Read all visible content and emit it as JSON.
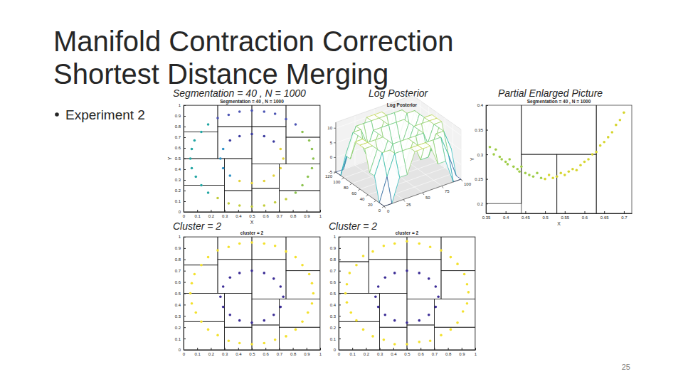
{
  "slide": {
    "title": [
      "Manifold Contraction Correction",
      "Shortest Distance Merging"
    ],
    "bullet": "Experiment 2",
    "captions": [
      "Segmentation = 40 , N = 1000",
      "Log Posterior",
      "Partial Enlarged Picture",
      "Cluster = 2",
      "Cluster = 2"
    ],
    "page": 25
  },
  "chart_data": [
    {
      "type": "scatter",
      "title": "Segmentation = 40 , N = 1000",
      "xlabel": "X",
      "ylabel": "Y",
      "xlim": [
        0,
        1
      ],
      "ylim": [
        0,
        1
      ],
      "xticks": [
        0,
        0.1,
        0.2,
        0.3,
        0.4,
        0.5,
        0.6,
        0.7,
        0.8,
        0.9,
        1
      ],
      "yticks": [
        0,
        0.1,
        0.2,
        0.3,
        0.4,
        0.5,
        0.6,
        0.7,
        0.8,
        0.9,
        1
      ],
      "boxes": [
        [
          0,
          0.25,
          0.5,
          0.75
        ],
        [
          0,
          0.25,
          0.75,
          1
        ],
        [
          0.25,
          0.5,
          0.5,
          0.8
        ],
        [
          0.25,
          0.5,
          0.8,
          1
        ],
        [
          0,
          0.3,
          0,
          0.25
        ],
        [
          0,
          0.3,
          0.25,
          0.5
        ],
        [
          0.3,
          0.5,
          0,
          0.2
        ],
        [
          0.3,
          0.5,
          0.2,
          0.5
        ],
        [
          0.5,
          0.75,
          0.45,
          0.8
        ],
        [
          0.5,
          0.75,
          0.8,
          1
        ],
        [
          0.75,
          1,
          0.45,
          0.7
        ],
        [
          0.75,
          1,
          0.7,
          1
        ],
        [
          0.5,
          0.7,
          0,
          0.22
        ],
        [
          0.5,
          0.7,
          0.22,
          0.45
        ],
        [
          0.7,
          1,
          0,
          0.2
        ],
        [
          0.7,
          1,
          0.2,
          0.45
        ]
      ],
      "series": [
        {
          "color": "#4b54b3",
          "x": [
            0.82,
            0.75,
            0.67,
            0.59,
            0.5,
            0.41,
            0.33,
            0.25
          ],
          "values": [
            0.82,
            0.87,
            0.92,
            0.94,
            0.95,
            0.94,
            0.91,
            0.88
          ]
        },
        {
          "color": "#22a6a3",
          "x": [
            0.18,
            0.13,
            0.08,
            0.06,
            0.05,
            0.06,
            0.09,
            0.13,
            0.18
          ],
          "values": [
            0.82,
            0.75,
            0.67,
            0.59,
            0.5,
            0.41,
            0.33,
            0.25,
            0.18
          ]
        },
        {
          "color": "#c2cd3a",
          "x": [
            0.25,
            0.33,
            0.41,
            0.5,
            0.59,
            0.67,
            0.75
          ],
          "values": [
            0.13,
            0.08,
            0.06,
            0.05,
            0.06,
            0.09,
            0.12
          ]
        },
        {
          "color": "#8cc34f",
          "x": [
            0.82,
            0.87,
            0.91,
            0.94,
            0.95,
            0.94,
            0.92,
            0.87
          ],
          "values": [
            0.18,
            0.25,
            0.33,
            0.41,
            0.5,
            0.59,
            0.67,
            0.75
          ]
        },
        {
          "color": "#3a3a9e",
          "x": [
            0.66,
            0.59,
            0.5,
            0.41,
            0.34
          ],
          "values": [
            0.66,
            0.71,
            0.73,
            0.71,
            0.67
          ]
        },
        {
          "color": "#2a8fc5",
          "x": [
            0.29,
            0.27,
            0.29,
            0.34
          ],
          "values": [
            0.59,
            0.5,
            0.41,
            0.34
          ]
        },
        {
          "color": "#e3d33a",
          "x": [
            0.41,
            0.5,
            0.59,
            0.66,
            0.71,
            0.73,
            0.71
          ],
          "values": [
            0.29,
            0.27,
            0.29,
            0.34,
            0.41,
            0.5,
            0.59
          ]
        }
      ]
    },
    {
      "type": "surface",
      "title": "Log Posterior",
      "x": [
        0,
        12,
        24,
        36,
        48,
        60,
        72,
        84,
        96,
        108,
        120
      ],
      "y": [
        0,
        10,
        20,
        30,
        40,
        50,
        60,
        70,
        80,
        90,
        100
      ],
      "z": [
        [
          -5,
          -5,
          3,
          3,
          10,
          10,
          10,
          3,
          3,
          -5,
          -5
        ],
        [
          -5,
          3,
          10,
          10,
          10,
          10,
          10,
          10,
          10,
          3,
          -5
        ],
        [
          3,
          10,
          10,
          3,
          3,
          10,
          3,
          3,
          10,
          10,
          3
        ],
        [
          3,
          10,
          3,
          10,
          10,
          10,
          10,
          10,
          3,
          10,
          3
        ],
        [
          10,
          10,
          3,
          10,
          3,
          3,
          3,
          10,
          3,
          10,
          10
        ],
        [
          10,
          10,
          10,
          10,
          3,
          -5,
          3,
          10,
          10,
          10,
          10
        ],
        [
          10,
          10,
          3,
          10,
          3,
          3,
          3,
          10,
          3,
          10,
          10
        ],
        [
          3,
          10,
          3,
          10,
          10,
          10,
          10,
          10,
          3,
          10,
          3
        ],
        [
          3,
          10,
          10,
          3,
          3,
          10,
          3,
          3,
          10,
          10,
          3
        ],
        [
          -5,
          3,
          10,
          10,
          10,
          10,
          10,
          10,
          10,
          3,
          -5
        ],
        [
          -5,
          -5,
          3,
          3,
          10,
          10,
          10,
          3,
          3,
          -5,
          -5
        ]
      ],
      "xlim": [
        0,
        120
      ],
      "ylim": [
        0,
        100
      ],
      "zlim": [
        -5,
        12
      ],
      "xticks": [
        0,
        20,
        40,
        60,
        80,
        100,
        120
      ],
      "yticks": [
        0,
        25,
        50,
        75,
        100
      ],
      "zticks": [
        -5,
        0,
        5,
        10
      ]
    },
    {
      "type": "scatter",
      "title": "Segmentation = 40 , N = 1000",
      "xlabel": "X",
      "ylabel": "Y",
      "xlim": [
        0.35,
        0.72
      ],
      "ylim": [
        0.18,
        0.4
      ],
      "xticks": [
        0.35,
        0.4,
        0.45,
        0.5,
        0.55,
        0.6,
        0.65,
        0.7
      ],
      "yticks": [
        0.2,
        0.25,
        0.3,
        0.35,
        0.4
      ],
      "boxes": [
        [
          0.25,
          0.44,
          0.2,
          0.5
        ],
        [
          0.44,
          0.53,
          0.1,
          0.3
        ],
        [
          0.53,
          0.63,
          0.1,
          0.3
        ],
        [
          0.44,
          0.63,
          0.3,
          0.5
        ],
        [
          0.63,
          0.8,
          0.1,
          0.45
        ]
      ],
      "series": [
        {
          "color": "#9fcd48",
          "x": [
            0.36,
            0.37,
            0.375,
            0.385,
            0.39,
            0.4,
            0.405,
            0.41,
            0.42,
            0.43,
            0.435,
            0.44,
            0.45,
            0.46,
            0.47,
            0.48,
            0.49
          ],
          "values": [
            0.315,
            0.3,
            0.31,
            0.295,
            0.29,
            0.285,
            0.28,
            0.29,
            0.275,
            0.27,
            0.265,
            0.275,
            0.262,
            0.258,
            0.255,
            0.262,
            0.252
          ]
        },
        {
          "color": "#d6d52e",
          "x": [
            0.5,
            0.51,
            0.52,
            0.53,
            0.54,
            0.55,
            0.56,
            0.57,
            0.58,
            0.59,
            0.6,
            0.61,
            0.62,
            0.63,
            0.64,
            0.65,
            0.66,
            0.67,
            0.68,
            0.69,
            0.7
          ],
          "values": [
            0.25,
            0.258,
            0.252,
            0.255,
            0.262,
            0.258,
            0.265,
            0.27,
            0.268,
            0.278,
            0.285,
            0.29,
            0.3,
            0.305,
            0.318,
            0.325,
            0.335,
            0.345,
            0.36,
            0.37,
            0.385
          ]
        }
      ]
    },
    {
      "type": "scatter",
      "title": "cluster = 2",
      "xlim": [
        0,
        1
      ],
      "ylim": [
        0,
        1
      ],
      "xticks": [
        0,
        0.1,
        0.2,
        0.3,
        0.4,
        0.5,
        0.6,
        0.7,
        0.8,
        0.9,
        1
      ],
      "yticks": [
        0,
        0.1,
        0.2,
        0.3,
        0.4,
        0.5,
        0.6,
        0.7,
        0.8,
        0.9,
        1
      ],
      "boxes": [
        [
          0,
          0.25,
          0.5,
          0.75
        ],
        [
          0,
          0.25,
          0.75,
          1
        ],
        [
          0.25,
          0.5,
          0.5,
          0.8
        ],
        [
          0.25,
          0.5,
          0.8,
          1
        ],
        [
          0,
          0.3,
          0,
          0.25
        ],
        [
          0,
          0.3,
          0.25,
          0.5
        ],
        [
          0.3,
          0.5,
          0,
          0.2
        ],
        [
          0.3,
          0.5,
          0.2,
          0.5
        ],
        [
          0.5,
          0.75,
          0.45,
          0.8
        ],
        [
          0.5,
          0.75,
          0.8,
          1
        ],
        [
          0.75,
          1,
          0.45,
          0.7
        ],
        [
          0.75,
          1,
          0.7,
          1
        ],
        [
          0.5,
          0.7,
          0,
          0.22
        ],
        [
          0.5,
          0.7,
          0.22,
          0.45
        ],
        [
          0.7,
          1,
          0,
          0.2
        ],
        [
          0.7,
          1,
          0.2,
          0.45
        ]
      ],
      "series": [
        {
          "color": "#f3e12c",
          "x": [
            0.95,
            0.94,
            0.92,
            0.87,
            0.82,
            0.75,
            0.67,
            0.59,
            0.5,
            0.41,
            0.33,
            0.25,
            0.18,
            0.13,
            0.08,
            0.06,
            0.05,
            0.06,
            0.09,
            0.13,
            0.18,
            0.25,
            0.33,
            0.41,
            0.5,
            0.59,
            0.67,
            0.75,
            0.82,
            0.87,
            0.91,
            0.94
          ],
          "values": [
            0.5,
            0.59,
            0.67,
            0.75,
            0.82,
            0.87,
            0.92,
            0.94,
            0.95,
            0.94,
            0.91,
            0.88,
            0.82,
            0.75,
            0.67,
            0.59,
            0.5,
            0.41,
            0.33,
            0.25,
            0.18,
            0.13,
            0.08,
            0.06,
            0.05,
            0.06,
            0.09,
            0.12,
            0.18,
            0.25,
            0.33,
            0.41
          ]
        },
        {
          "color": "#3c2d96",
          "x": [
            0.73,
            0.71,
            0.66,
            0.59,
            0.5,
            0.41,
            0.34,
            0.29,
            0.27,
            0.29,
            0.34,
            0.41,
            0.5,
            0.59,
            0.66,
            0.71
          ],
          "values": [
            0.47,
            0.56,
            0.63,
            0.68,
            0.7,
            0.68,
            0.64,
            0.56,
            0.47,
            0.38,
            0.31,
            0.26,
            0.24,
            0.26,
            0.31,
            0.38
          ]
        }
      ]
    },
    {
      "type": "scatter",
      "title": "cluster = 2",
      "xlim": [
        0,
        1
      ],
      "ylim": [
        0,
        1
      ],
      "xticks": [
        0,
        0.1,
        0.2,
        0.3,
        0.4,
        0.5,
        0.6,
        0.7,
        0.8,
        0.9,
        1
      ],
      "yticks": [
        0,
        0.1,
        0.2,
        0.3,
        0.4,
        0.5,
        0.6,
        0.7,
        0.8,
        0.9,
        1
      ],
      "boxes": [
        [
          0,
          0.22,
          0.5,
          0.78
        ],
        [
          0,
          0.22,
          0.78,
          1
        ],
        [
          0.22,
          0.5,
          0.5,
          0.8
        ],
        [
          0.22,
          0.5,
          0.8,
          1
        ],
        [
          0,
          0.3,
          0,
          0.25
        ],
        [
          0,
          0.3,
          0.25,
          0.5
        ],
        [
          0.3,
          0.5,
          0,
          0.2
        ],
        [
          0.3,
          0.5,
          0.2,
          0.5
        ],
        [
          0.5,
          0.75,
          0.45,
          0.8
        ],
        [
          0.5,
          0.75,
          0.8,
          1
        ],
        [
          0.75,
          1,
          0.45,
          0.7
        ],
        [
          0.75,
          1,
          0.7,
          1
        ],
        [
          0.5,
          0.7,
          0,
          0.22
        ],
        [
          0.5,
          0.7,
          0.22,
          0.45
        ],
        [
          0.7,
          1,
          0,
          0.2
        ],
        [
          0.7,
          1,
          0.2,
          0.45
        ]
      ],
      "series": [
        {
          "color": "#f3e12c",
          "x": [
            0.95,
            0.94,
            0.92,
            0.87,
            0.82,
            0.75,
            0.67,
            0.59,
            0.5,
            0.41,
            0.33,
            0.25,
            0.18,
            0.13,
            0.08,
            0.06,
            0.05,
            0.06,
            0.09,
            0.13,
            0.18,
            0.25,
            0.33,
            0.41,
            0.5,
            0.59,
            0.67,
            0.75,
            0.82,
            0.87,
            0.91,
            0.94
          ],
          "values": [
            0.51,
            0.58,
            0.67,
            0.76,
            0.82,
            0.88,
            0.91,
            0.94,
            0.96,
            0.94,
            0.92,
            0.87,
            0.83,
            0.75,
            0.68,
            0.58,
            0.5,
            0.42,
            0.33,
            0.26,
            0.18,
            0.12,
            0.09,
            0.05,
            0.05,
            0.07,
            0.08,
            0.13,
            0.18,
            0.24,
            0.34,
            0.41
          ]
        },
        {
          "color": "#3c2d96",
          "x": [
            0.73,
            0.71,
            0.66,
            0.59,
            0.5,
            0.41,
            0.34,
            0.29,
            0.27,
            0.29,
            0.34,
            0.41,
            0.5,
            0.59,
            0.66,
            0.71
          ],
          "values": [
            0.47,
            0.56,
            0.63,
            0.68,
            0.7,
            0.68,
            0.64,
            0.56,
            0.47,
            0.38,
            0.31,
            0.26,
            0.24,
            0.26,
            0.31,
            0.38
          ]
        }
      ]
    }
  ]
}
